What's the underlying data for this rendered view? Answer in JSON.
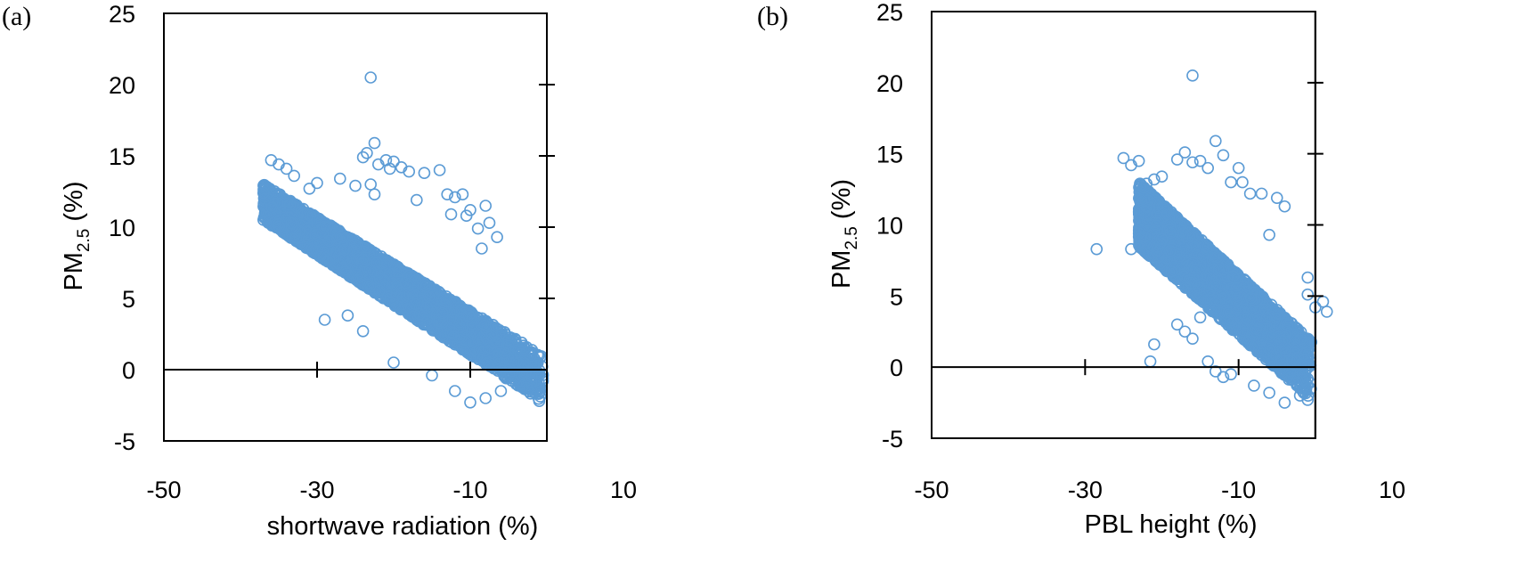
{
  "chart_data": [
    {
      "panel_label": "(a)",
      "type": "scatter",
      "xlabel": "shortwave radiation (%)",
      "ylabel": {
        "main": "PM",
        "sub": "2.5",
        "suffix": " (%)"
      },
      "xlim": [
        -50,
        10
      ],
      "ylim": [
        -5,
        25
      ],
      "xticks": [
        -50,
        -30,
        -10,
        10
      ],
      "yticks": [
        -5,
        0,
        5,
        10,
        15,
        20,
        25
      ],
      "grid": false,
      "marker": "open-circle",
      "color": "#5b9bd5",
      "cloud": {
        "x_range": [
          -37,
          -0.5
        ],
        "y_at_left": [
          10.5,
          13.0
        ],
        "y_at_right": [
          -2.3,
          1.0
        ],
        "n": 3500
      },
      "points": [
        [
          -23,
          20.5
        ],
        [
          -22.5,
          15.9
        ],
        [
          -23.5,
          15.2
        ],
        [
          -24,
          14.9
        ],
        [
          -21,
          14.7
        ],
        [
          -20,
          14.6
        ],
        [
          -20.5,
          14.1
        ],
        [
          -22,
          14.4
        ],
        [
          -19,
          14.2
        ],
        [
          -18,
          13.9
        ],
        [
          -16,
          13.8
        ],
        [
          -14,
          14.0
        ],
        [
          -36,
          14.7
        ],
        [
          -35,
          14.4
        ],
        [
          -34,
          14.1
        ],
        [
          -33,
          13.6
        ],
        [
          -37,
          12.4
        ],
        [
          -25,
          12.9
        ],
        [
          -23,
          13.0
        ],
        [
          -22.5,
          12.3
        ],
        [
          -17,
          11.9
        ],
        [
          -13,
          12.3
        ],
        [
          -12,
          12.1
        ],
        [
          -11,
          12.3
        ],
        [
          -10,
          11.2
        ],
        [
          -8,
          11.5
        ],
        [
          -7.5,
          10.3
        ],
        [
          -6.5,
          9.3
        ],
        [
          -12.5,
          10.9
        ],
        [
          -10.5,
          10.8
        ],
        [
          -9,
          9.9
        ],
        [
          -27,
          13.4
        ],
        [
          -30,
          13.1
        ],
        [
          -31,
          12.7
        ],
        [
          -8.5,
          8.5
        ],
        [
          -29,
          3.5
        ],
        [
          -26,
          3.8
        ],
        [
          -24,
          2.7
        ],
        [
          -20,
          0.5
        ],
        [
          -15,
          -0.4
        ],
        [
          -12,
          -1.5
        ],
        [
          -10,
          -2.3
        ],
        [
          -8,
          -2.0
        ],
        [
          -6,
          -1.5
        ],
        [
          -4,
          -1.0
        ],
        [
          -2,
          -0.5
        ],
        [
          -1,
          -2.2
        ],
        [
          -3,
          0.5
        ]
      ]
    },
    {
      "panel_label": "(b)",
      "type": "scatter",
      "xlabel": "PBL height (%)",
      "ylabel": {
        "main": "PM",
        "sub": "2.5",
        "suffix": " (%)"
      },
      "xlim": [
        -50,
        10
      ],
      "ylim": [
        -5,
        25
      ],
      "xticks": [
        -50,
        -30,
        -10,
        10
      ],
      "yticks": [
        -5,
        0,
        5,
        10,
        15,
        20,
        25
      ],
      "grid": false,
      "marker": "open-circle",
      "color": "#5b9bd5",
      "cloud": {
        "x_range": [
          -23,
          -0.5
        ],
        "y_at_left": [
          8.5,
          13.0
        ],
        "y_at_right": [
          -2.3,
          1.8
        ],
        "n": 3500
      },
      "points": [
        [
          -16,
          20.5
        ],
        [
          -17,
          15.1
        ],
        [
          -18,
          14.6
        ],
        [
          -15,
          14.5
        ],
        [
          -16,
          14.4
        ],
        [
          -14,
          14.0
        ],
        [
          -13,
          15.9
        ],
        [
          -12,
          14.9
        ],
        [
          -25,
          14.7
        ],
        [
          -24,
          14.2
        ],
        [
          -23,
          14.5
        ],
        [
          -22,
          12.9
        ],
        [
          -21,
          13.2
        ],
        [
          -20,
          13.4
        ],
        [
          -11,
          13.0
        ],
        [
          -10,
          14.0
        ],
        [
          -9.5,
          13.0
        ],
        [
          -8.5,
          12.2
        ],
        [
          -7,
          12.2
        ],
        [
          -5,
          11.9
        ],
        [
          -4,
          11.3
        ],
        [
          -28.5,
          8.3
        ],
        [
          -24,
          8.3
        ],
        [
          -20,
          9.0
        ],
        [
          -6,
          9.3
        ],
        [
          -1,
          6.3
        ],
        [
          -1,
          5.1
        ],
        [
          1,
          4.6
        ],
        [
          1.5,
          3.9
        ],
        [
          0,
          4.2
        ],
        [
          -21,
          1.6
        ],
        [
          -21.5,
          0.4
        ],
        [
          -18,
          3.0
        ],
        [
          -17,
          2.5
        ],
        [
          -16,
          2.0
        ],
        [
          -15,
          3.5
        ],
        [
          -14,
          0.4
        ],
        [
          -13,
          -0.3
        ],
        [
          -12,
          -0.7
        ],
        [
          -11,
          -0.5
        ],
        [
          -8,
          -1.3
        ],
        [
          -6,
          -1.8
        ],
        [
          -4,
          -2.5
        ],
        [
          -2,
          -2.0
        ],
        [
          -1,
          -2.3
        ]
      ]
    }
  ]
}
